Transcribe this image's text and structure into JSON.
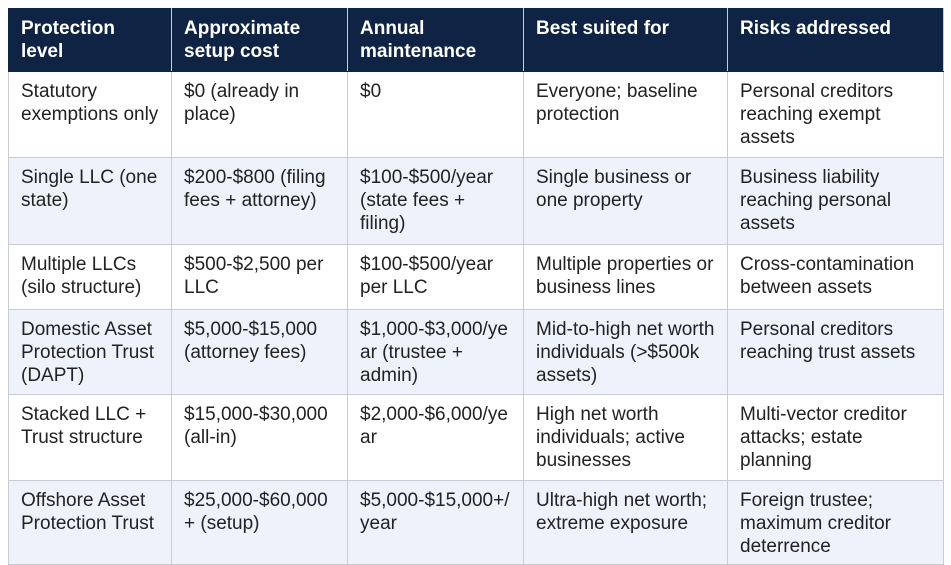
{
  "table": {
    "header": [
      "Protection level",
      "Approximate setup cost",
      "Annual maintenance",
      "Best suited for",
      "Risks addressed"
    ],
    "rows": [
      [
        "Statutory exemptions only",
        "$0 (already in place)",
        "$0",
        "Everyone; baseline protection",
        "Personal creditors reaching exempt assets"
      ],
      [
        "Single LLC (one state)",
        "$200-$800 (filing fees + attorney)",
        "$100-$500/year (state fees + filing)",
        "Single business or one property",
        "Business liability reaching personal assets"
      ],
      [
        "Multiple LLCs (silo structure)",
        "$500-$2,500 per LLC",
        "$100-$500/year per LLC",
        "Multiple properties or business lines",
        "Cross-contamination between assets"
      ],
      [
        "Domestic Asset Protection Trust (DAPT)",
        "$5,000-$15,000 (attorney fees)",
        "$1,000-$3,000/year (trustee + admin)",
        "Mid-to-high net worth individuals (>$500k assets)",
        "Personal creditors reaching trust assets"
      ],
      [
        "Stacked LLC + Trust structure",
        "$15,000-$30,000 (all-in)",
        "$2,000-$6,000/year",
        "High net worth individuals; active businesses",
        "Multi-vector creditor attacks; estate planning"
      ],
      [
        "Offshore Asset Protection Trust",
        "$25,000-$60,000+ (setup)",
        "$5,000-$15,000+/year",
        "Ultra-high net worth; extreme exposure",
        "Foreign trustee; maximum creditor deterrence"
      ]
    ]
  }
}
